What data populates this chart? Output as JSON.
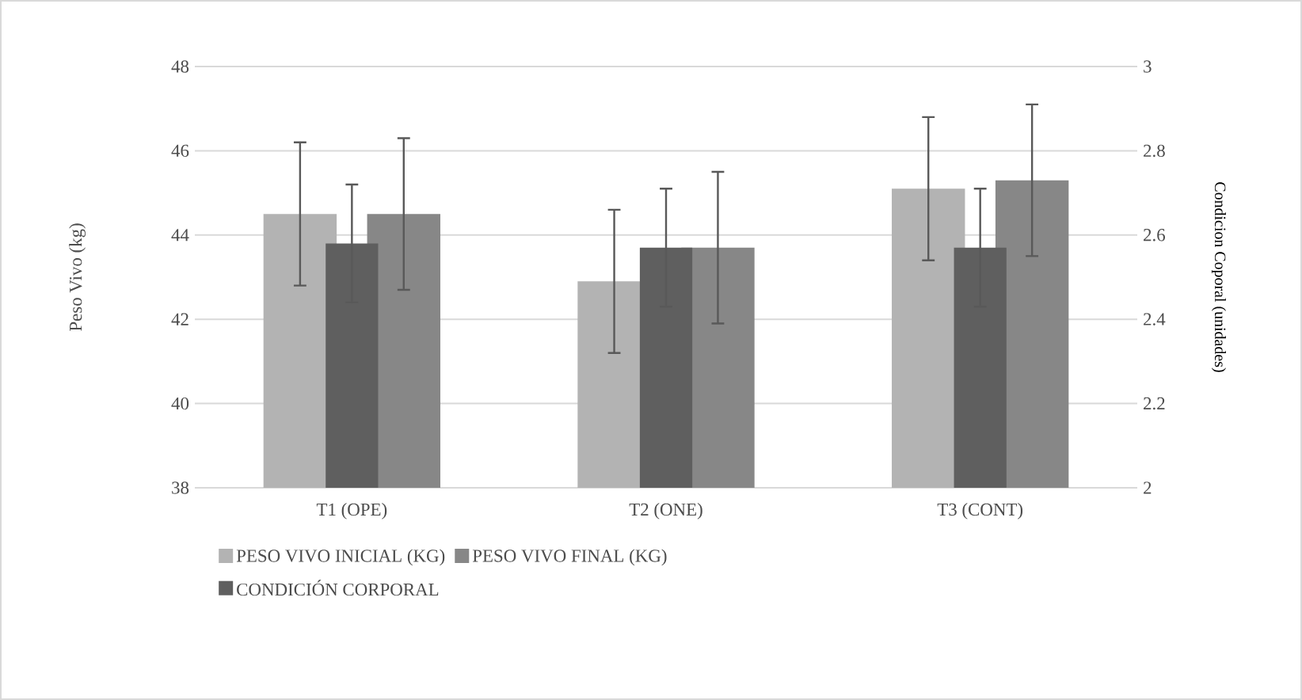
{
  "chart_data": {
    "type": "bar",
    "categories": [
      "T1 (OPE)",
      "T2 (ONE)",
      "T3 (CONT)"
    ],
    "ylabel": "Peso Vivo (kg)",
    "y2label": "Condicion Coporal (unidades)",
    "ylim": [
      38,
      48
    ],
    "yticks": [
      38,
      40,
      42,
      44,
      46,
      48
    ],
    "y2lim": [
      2,
      3
    ],
    "y2ticks": [
      2,
      2.2,
      2.4,
      2.6,
      2.8,
      3
    ],
    "grid": "y",
    "legend": "bottom",
    "series": [
      {
        "name": "PESO VIVO INICIAL (KG)",
        "color": "#b3b3b3",
        "values": [
          44.5,
          42.9,
          45.1
        ],
        "errors": [
          1.7,
          1.7,
          1.7
        ]
      },
      {
        "name": "CONDICIÓN CORPORAL",
        "color": "#5f5f5f",
        "axis": "y2",
        "values": [
          2.58,
          2.57,
          2.57
        ],
        "errors": [
          0.14,
          0.14,
          0.14
        ]
      },
      {
        "name": "PESO VIVO FINAL (KG)",
        "color": "#878787",
        "values": [
          44.5,
          43.7,
          45.3
        ],
        "errors": [
          1.8,
          1.8,
          1.8
        ]
      }
    ]
  }
}
